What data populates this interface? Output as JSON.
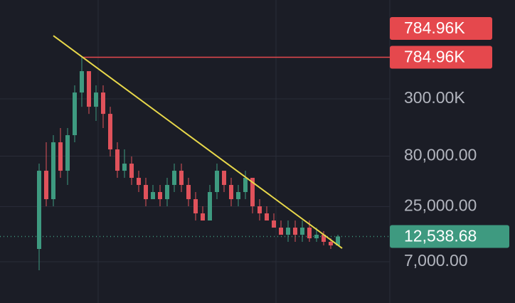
{
  "chart_data": {
    "type": "candlestick",
    "log_scale": true,
    "up_color": "#3e9a80",
    "down_color": "#e0525b",
    "open": [
      9400,
      57170,
      29650,
      110200,
      57170,
      129900,
      347600,
      568900,
      250300,
      347600,
      212400,
      93500,
      57170,
      67350,
      48520,
      41180,
      29650,
      34950,
      29650,
      41180,
      57170,
      41180,
      29650,
      21360,
      18130,
      34950,
      57170,
      41180,
      29650,
      34950,
      48520,
      25160,
      21360,
      18130,
      15380,
      13050,
      15380,
      13050,
      15380,
      12020,
      13050,
      11080,
      10200
    ],
    "high": [
      67350,
      110200,
      129900,
      153000,
      153000,
      409700,
      784960,
      568900,
      409700,
      409700,
      250300,
      110200,
      93500,
      79350,
      57170,
      48520,
      41180,
      41180,
      48520,
      67350,
      67350,
      48520,
      34950,
      25160,
      41180,
      67350,
      57170,
      48520,
      41180,
      57170,
      48520,
      29650,
      25160,
      21360,
      18130,
      18130,
      18130,
      18130,
      18130,
      15380,
      14160,
      12020,
      13050
    ],
    "low": [
      5743,
      25160,
      25160,
      48520,
      41180,
      110200,
      250300,
      212400,
      180300,
      153000,
      79350,
      48520,
      48520,
      41180,
      34950,
      25160,
      29650,
      25160,
      25160,
      34950,
      34950,
      25160,
      18130,
      18130,
      18130,
      29650,
      34950,
      25160,
      25160,
      29650,
      21360,
      18130,
      18130,
      15380,
      13050,
      11080,
      11080,
      11080,
      11080,
      11080,
      10200,
      9400,
      10200
    ],
    "close": [
      57170,
      29650,
      110200,
      57170,
      129900,
      347600,
      568900,
      250300,
      347600,
      212400,
      93500,
      57170,
      67350,
      48520,
      41180,
      29650,
      34950,
      29650,
      41180,
      57170,
      41180,
      29650,
      21360,
      18130,
      34950,
      57170,
      41180,
      29650,
      34950,
      48520,
      25160,
      21360,
      18130,
      15380,
      13050,
      15380,
      13050,
      15380,
      12020,
      13050,
      11080,
      10200,
      12538.68
    ],
    "ylim": [
      2700,
      2940000
    ],
    "yticks": [
      {
        "value": 300000,
        "label": "300.00K"
      },
      {
        "value": 80000,
        "label": "80,000.00"
      },
      {
        "value": 25000,
        "label": "25,000.00"
      },
      {
        "value": 7000,
        "label": "7,000.00"
      }
    ],
    "grid": true,
    "highlight_price": {
      "value": 784960,
      "label": "784.96K",
      "color": "#e5484d"
    },
    "last_price": {
      "value": 12538.68,
      "label": "12,538.68",
      "color": "#3e9a80"
    },
    "trendline": {
      "x": [
        2,
        42.6
      ],
      "y": [
        1290000,
        9550
      ],
      "color": "#e8d84a"
    }
  }
}
